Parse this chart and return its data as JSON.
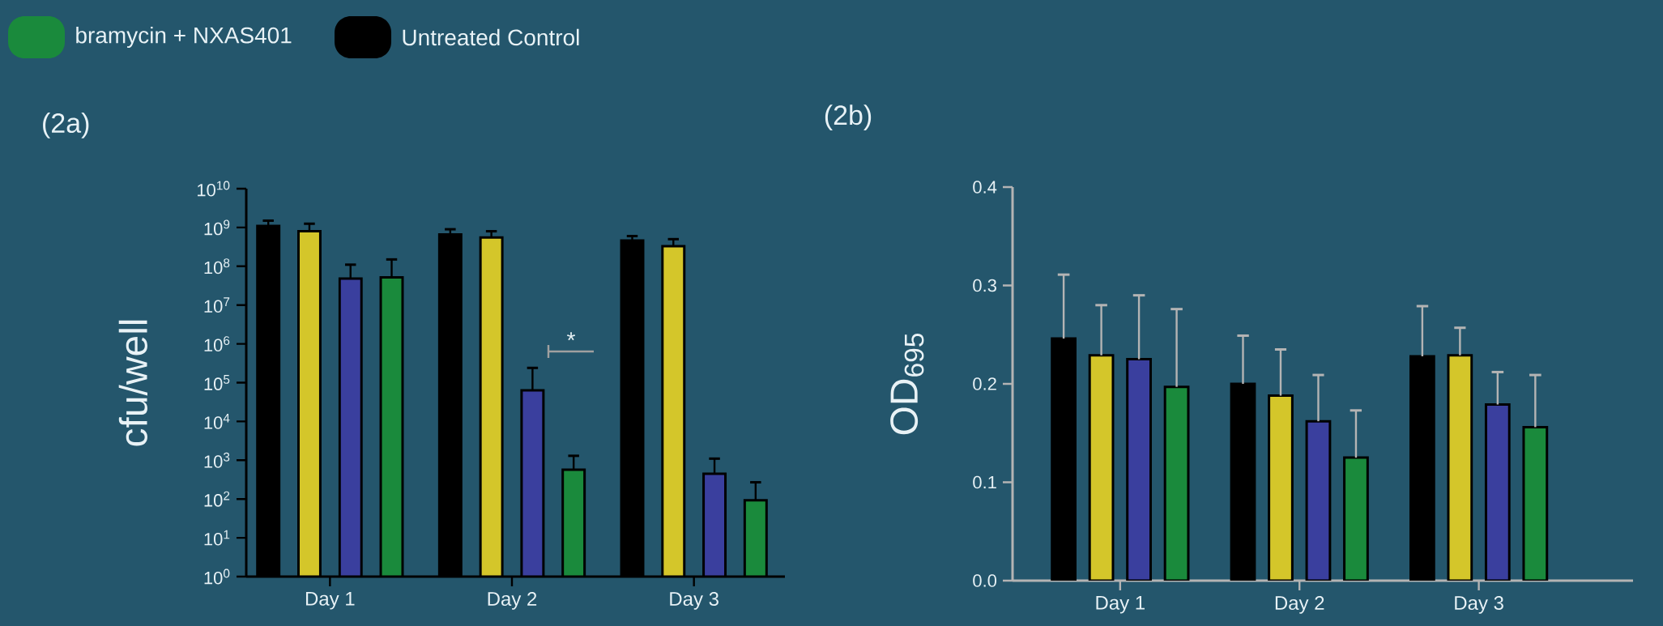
{
  "chart_data": [
    {
      "type": "bar",
      "title": "(2a)",
      "ylabel": "cfu/well",
      "categories": [
        "Day 1",
        "Day 2",
        "Day 3"
      ],
      "log": "y",
      "ylim": [
        1,
        10000000000
      ],
      "yticks": [
        {
          "value": 1,
          "label": "10$^{0}$"
        },
        {
          "value": 10,
          "label": "10$^{1}$"
        },
        {
          "value": 100,
          "label": "10$^{2}$"
        },
        {
          "value": 1000,
          "label": "10$^{3}$"
        },
        {
          "value": 10000,
          "label": "10$^{4}$"
        },
        {
          "value": 100000,
          "label": "10$^{5}$"
        },
        {
          "value": 1000000,
          "label": "10$^{6}$"
        },
        {
          "value": 10000000,
          "label": "10$^{7}$"
        },
        {
          "value": 100000000,
          "label": "10$^{8}$"
        },
        {
          "value": 1000000000,
          "label": "10$^{9}$"
        },
        {
          "value": 10000000000,
          "label": "10$^{10}$"
        }
      ],
      "legend": "top left",
      "series": [
        {
          "name": "Untreated Control",
          "color": "#000000",
          "values": [
            1100000000,
            660000000,
            460000000
          ],
          "errors": [
            [
              1100000000,
              1500000000
            ],
            [
              660000000,
              900000000
            ],
            [
              460000000,
              600000000
            ]
          ]
        },
        {
          "color": "#d4c62a",
          "values": [
            800000000,
            550000000,
            330000000
          ],
          "errors": [
            [
              800000000,
              1250000000
            ],
            [
              550000000,
              800000000
            ],
            [
              330000000,
              500000000
            ]
          ]
        },
        {
          "color": "#3a3f9e",
          "values": [
            48000000,
            63000,
            450
          ],
          "errors": [
            [
              48000000,
              110000000
            ],
            [
              63000,
              240000
            ],
            [
              450,
              1100
            ]
          ]
        },
        {
          "name": "bramycin + NXAS401",
          "color": "#1a8a3c",
          "values": [
            52000000,
            570,
            93
          ],
          "errors": [
            [
              52000000,
              150000000
            ],
            [
              570,
              1300
            ],
            [
              93,
              270
            ]
          ]
        }
      ],
      "annotations": [
        "*"
      ]
    },
    {
      "type": "bar",
      "title": "(2b)",
      "ylabel": "OD$_{695}$",
      "categories": [
        "Day 1",
        "Day 2",
        "Day 3"
      ],
      "ylim": [
        0,
        0.4
      ],
      "yticks": [
        {
          "value": 0,
          "label": "0.0"
        },
        0.1,
        0.2,
        0.3,
        0.4
      ],
      "series": [
        {
          "color": "#000000",
          "values": [
            0.246,
            0.2,
            0.228
          ],
          "errors": [
            [
              0.246,
              0.311
            ],
            [
              0.2,
              0.249
            ],
            [
              0.228,
              0.279
            ]
          ]
        },
        {
          "color": "#d4c62a",
          "values": [
            0.229,
            0.188,
            0.229
          ],
          "errors": [
            [
              0.229,
              0.28
            ],
            [
              0.188,
              0.235
            ],
            [
              0.229,
              0.257
            ]
          ]
        },
        {
          "color": "#3a3f9e",
          "values": [
            0.225,
            0.162,
            0.179
          ],
          "errors": [
            [
              0.225,
              0.29
            ],
            [
              0.162,
              0.209
            ],
            [
              0.179,
              0.212
            ]
          ]
        },
        {
          "color": "#1a8a3c",
          "values": [
            0.197,
            0.125,
            0.156
          ],
          "errors": [
            [
              0.197,
              0.276
            ],
            [
              0.125,
              0.173
            ],
            [
              0.156,
              0.209
            ]
          ]
        }
      ]
    }
  ]
}
